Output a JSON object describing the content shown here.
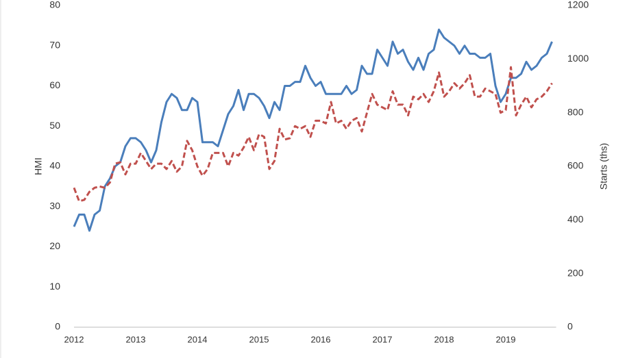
{
  "chart_data": {
    "type": "line",
    "y_label": "HMI",
    "y2_label": "Starts (ths)",
    "categories": [
      "2012",
      null,
      null,
      null,
      null,
      null,
      null,
      null,
      null,
      null,
      null,
      null,
      "2013",
      null,
      null,
      null,
      null,
      null,
      null,
      null,
      null,
      null,
      null,
      null,
      "2014",
      null,
      null,
      null,
      null,
      null,
      null,
      null,
      null,
      null,
      null,
      null,
      "2015",
      null,
      null,
      null,
      null,
      null,
      null,
      null,
      null,
      null,
      null,
      null,
      "2016",
      null,
      null,
      null,
      null,
      null,
      null,
      null,
      null,
      null,
      null,
      null,
      "2017",
      null,
      null,
      null,
      null,
      null,
      null,
      null,
      null,
      null,
      null,
      null,
      "2018",
      null,
      null,
      null,
      null,
      null,
      null,
      null,
      null,
      null,
      null,
      null,
      "2019",
      null,
      null,
      null,
      null,
      null,
      null,
      null,
      null,
      null
    ],
    "series": [
      {
        "color": "#4a7ebb",
        "values": [
          25,
          28,
          28,
          24,
          28,
          29,
          35,
          37,
          40,
          41,
          45,
          47,
          47,
          46,
          44,
          41,
          44,
          51,
          56,
          58,
          57,
          54,
          54,
          57,
          56,
          46,
          46,
          46,
          45,
          49,
          53,
          55,
          59,
          54,
          58,
          58,
          57,
          55,
          52,
          56,
          54,
          60,
          60,
          61,
          61,
          65,
          62,
          60,
          61,
          58,
          58,
          58,
          58,
          60,
          58,
          59,
          65,
          63,
          63,
          69,
          67,
          65,
          71,
          68,
          69,
          66,
          64,
          67,
          64,
          68,
          69,
          74,
          72,
          71,
          70,
          68,
          70,
          68,
          68,
          67,
          67,
          68,
          60,
          56,
          58,
          62,
          62,
          63,
          66,
          64,
          65,
          67,
          68,
          71
        ]
      },
      {
        "color": "#c0504d",
        "dashed": true,
        "axis": "y2",
        "values": [
          520,
          470,
          475,
          505,
          520,
          525,
          520,
          540,
          610,
          615,
          570,
          610,
          610,
          650,
          620,
          590,
          610,
          610,
          590,
          620,
          580,
          600,
          695,
          660,
          600,
          565,
          590,
          650,
          650,
          650,
          600,
          650,
          640,
          670,
          710,
          660,
          720,
          710,
          590,
          620,
          740,
          700,
          705,
          750,
          740,
          750,
          710,
          770,
          770,
          760,
          840,
          760,
          770,
          740,
          770,
          780,
          730,
          800,
          870,
          830,
          820,
          810,
          880,
          830,
          830,
          790,
          860,
          850,
          870,
          840,
          880,
          950,
          860,
          880,
          910,
          890,
          910,
          940,
          860,
          860,
          890,
          880,
          870,
          800,
          810,
          970,
          790,
          830,
          860,
          820,
          850,
          860,
          880,
          910
        ]
      }
    ],
    "ylim": [
      0,
      80
    ],
    "yticks": [
      0,
      10,
      20,
      30,
      40,
      50,
      60,
      70,
      80
    ],
    "y2lim": [
      0,
      1200
    ],
    "y2ticks": [
      0,
      200,
      400,
      600,
      800,
      1000,
      1200
    ],
    "grid": false
  }
}
